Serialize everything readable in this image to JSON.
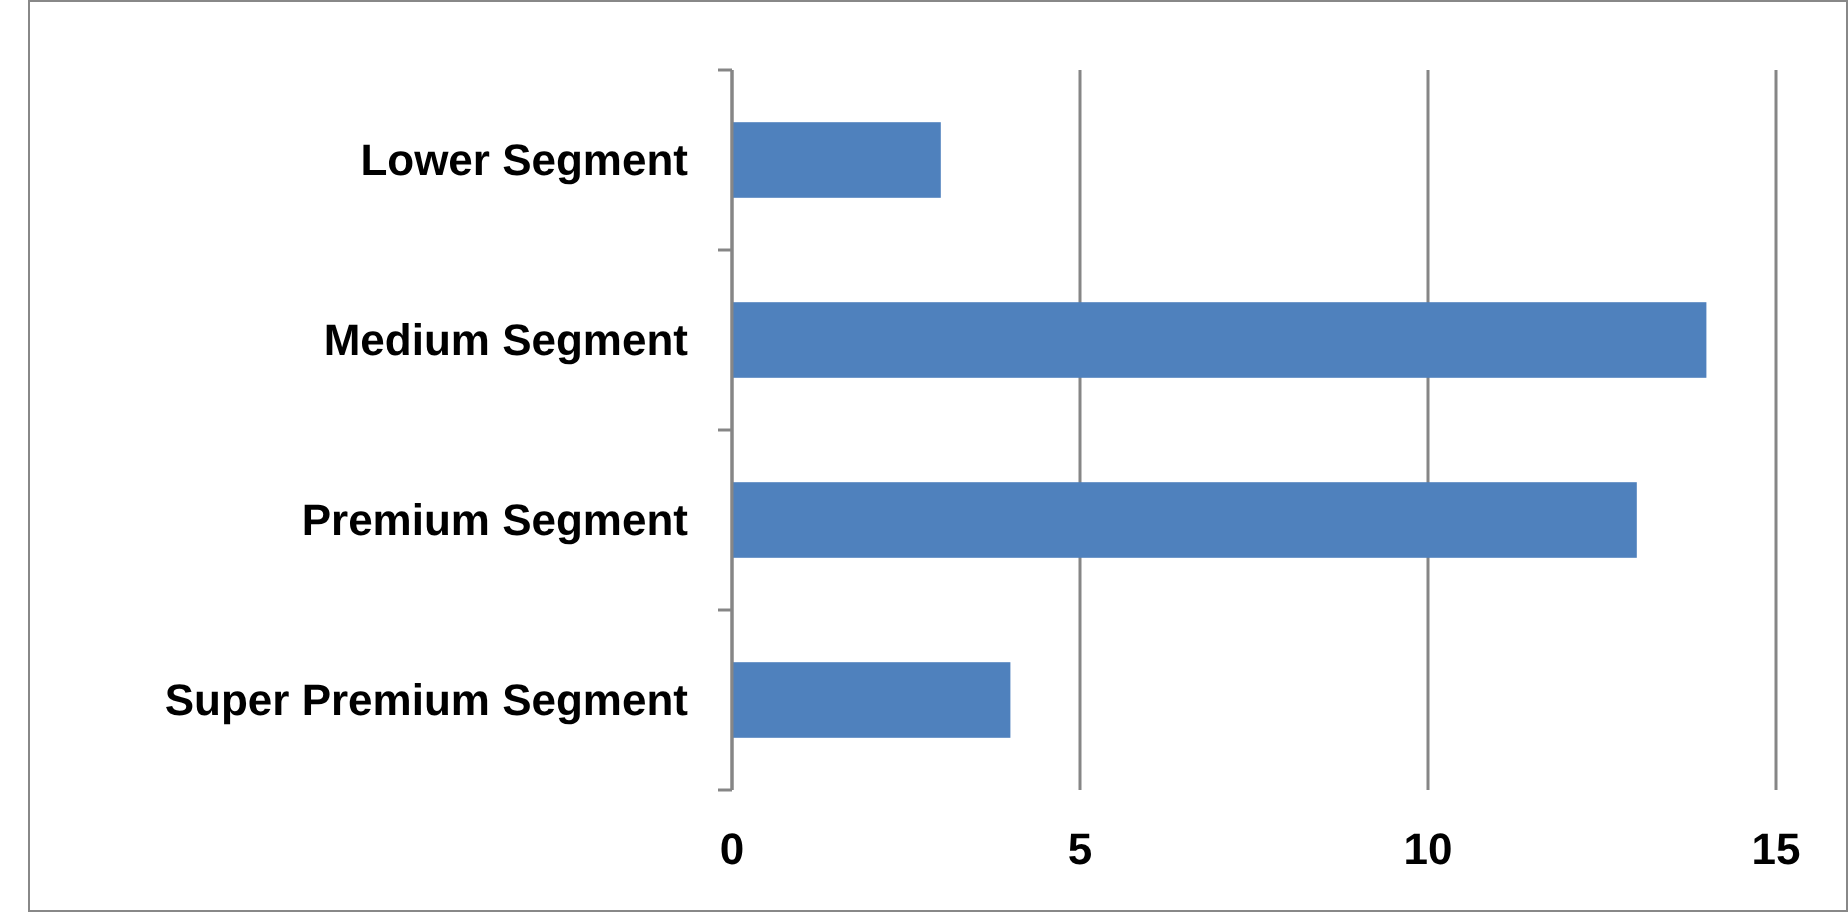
{
  "chart_data": {
    "type": "bar",
    "orientation": "horizontal",
    "categories": [
      "Lower Segment",
      "Medium Segment",
      "Premium Segment",
      "Super Premium Segment"
    ],
    "values": [
      3,
      14,
      13,
      4
    ],
    "color": "#4f81bd",
    "xlim": [
      0,
      15
    ],
    "xticks": [
      0,
      5,
      10,
      15
    ],
    "grid": "x"
  }
}
